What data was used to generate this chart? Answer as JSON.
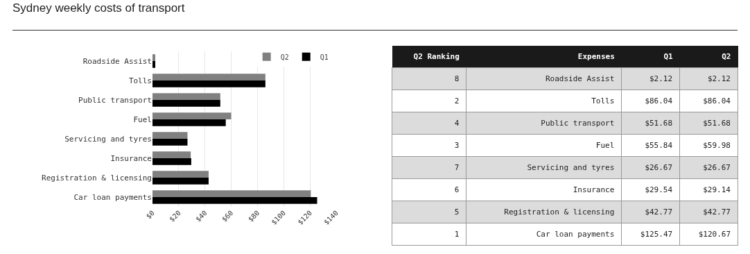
{
  "chart_data": [
    {
      "type": "bar",
      "title": "Sydney weekly costs of transport",
      "orientation": "horizontal",
      "categories": [
        "Roadside Assist",
        "Tolls",
        "Public transport",
        "Fuel",
        "Servicing and tyres",
        "Insurance",
        "Registration & licensing",
        "Car loan payments"
      ],
      "series": [
        {
          "name": "Q2",
          "color": "#808080",
          "values": [
            2.12,
            86.04,
            51.68,
            59.98,
            26.67,
            29.14,
            42.77,
            120.67
          ]
        },
        {
          "name": "Q1",
          "color": "#000000",
          "values": [
            2.12,
            86.04,
            51.68,
            55.84,
            26.67,
            29.54,
            42.77,
            125.47
          ]
        }
      ],
      "xlim": [
        0,
        140
      ],
      "xticks": [
        {
          "value": 0,
          "label": "$0"
        },
        {
          "value": 20,
          "label": "$20"
        },
        {
          "value": 40,
          "label": "$40"
        },
        {
          "value": 60,
          "label": "$60"
        },
        {
          "value": 80,
          "label": "$80"
        },
        {
          "value": 100,
          "label": "$100"
        },
        {
          "value": 120,
          "label": "$120"
        },
        {
          "value": 140,
          "label": "$140"
        }
      ],
      "grid": "x",
      "legend": "top right"
    },
    {
      "type": "other",
      "categories": [
        "Q2 Ranking",
        "Expenses",
        "Q1",
        "Q2"
      ],
      "cell_labels": [
        [
          "8",
          "Roadside Assist",
          "$2.12",
          "$2.12"
        ],
        [
          "2",
          "Tolls",
          "$86.04",
          "$86.04"
        ],
        [
          "4",
          "Public transport",
          "$51.68",
          "$51.68"
        ],
        [
          "3",
          "Fuel",
          "$55.84",
          "$59.98"
        ],
        [
          "7",
          "Servicing and tyres",
          "$26.67",
          "$26.67"
        ],
        [
          "6",
          "Insurance",
          "$29.54",
          "$29.14"
        ],
        [
          "5",
          "Registration & licensing",
          "$42.77",
          "$42.77"
        ],
        [
          "1",
          "Car loan payments",
          "$125.47",
          "$120.67"
        ]
      ]
    }
  ]
}
